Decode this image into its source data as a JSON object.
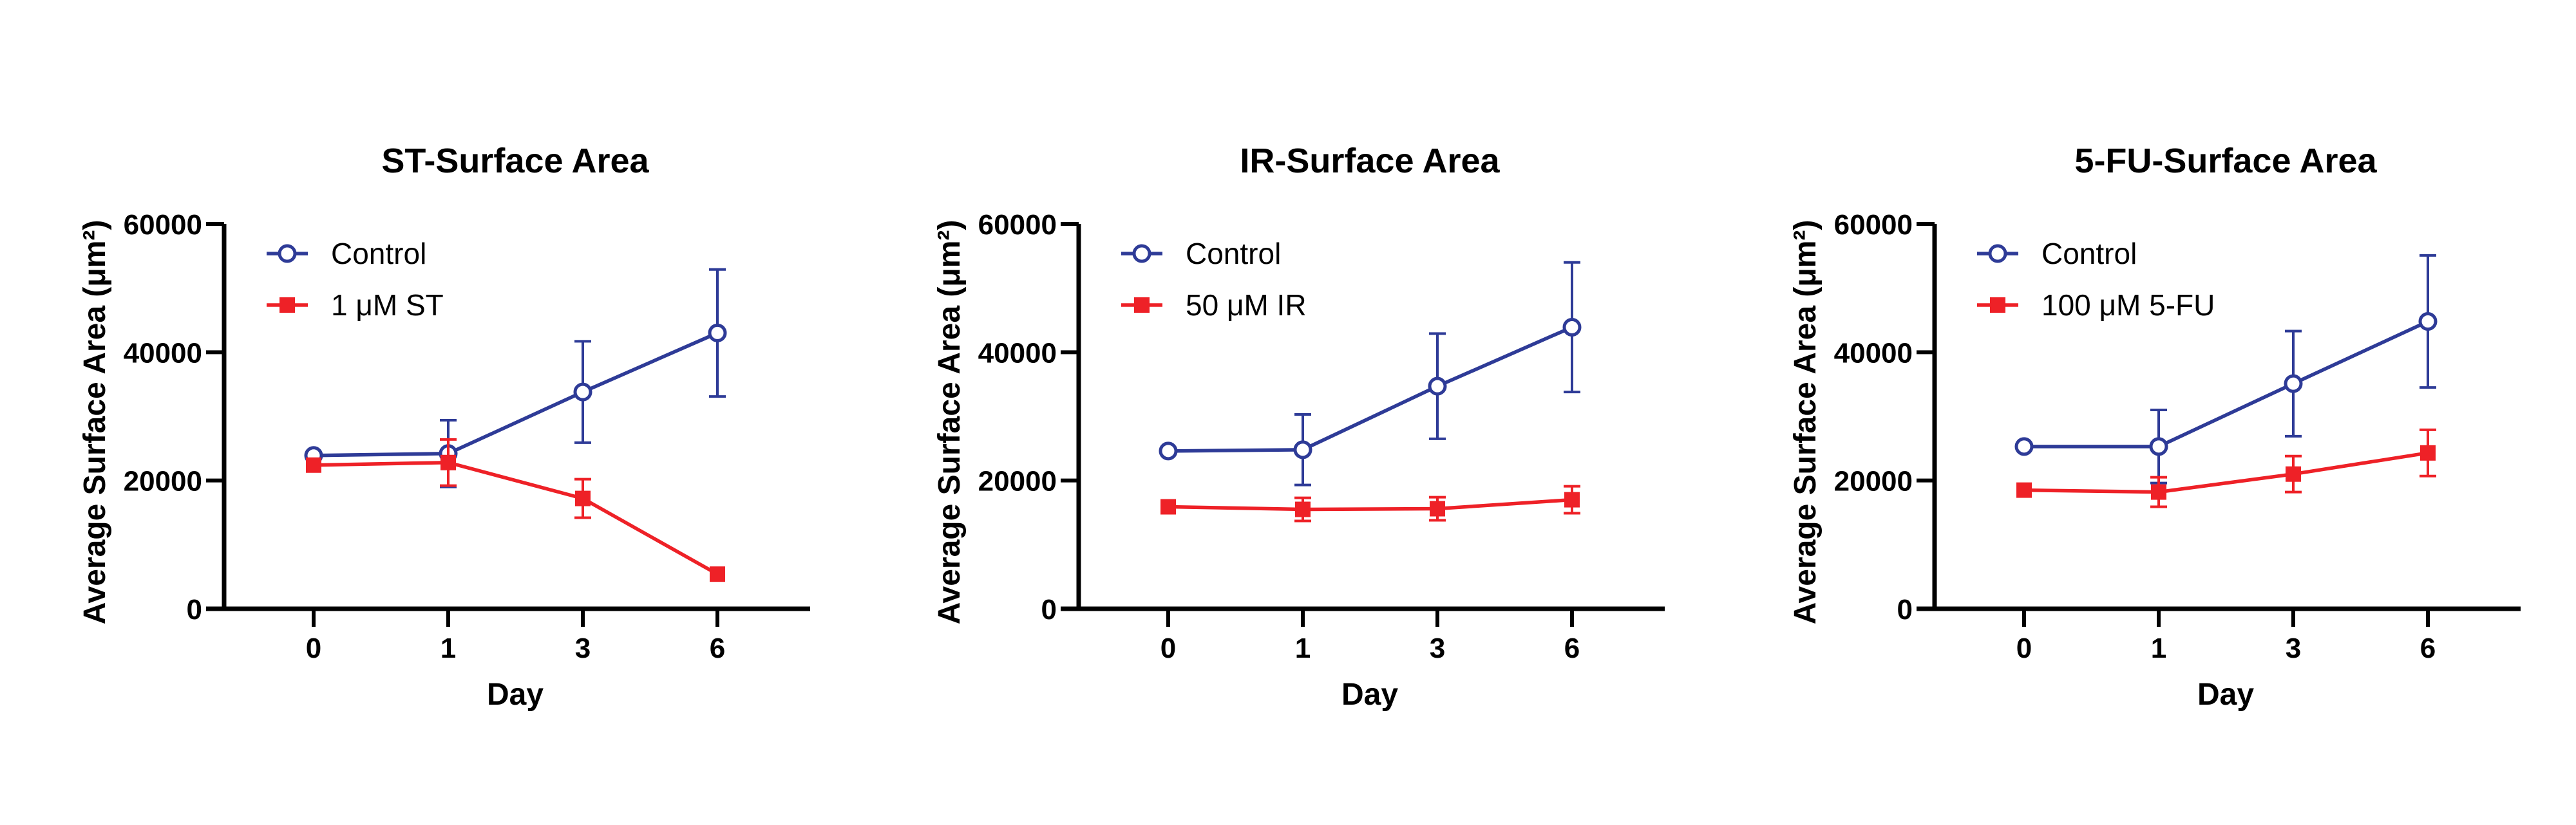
{
  "colors": {
    "control": "#2E3B97",
    "treatment": "#EE2127",
    "axis": "#000000"
  },
  "chart_data": [
    {
      "type": "line",
      "title": "ST-Surface Area",
      "xlabel": "Day",
      "ylabel": "Average Surface Area (μm²)",
      "categories": [
        "0",
        "1",
        "3",
        "6"
      ],
      "ylim": [
        0,
        60000
      ],
      "yticks": [
        "0",
        "20000",
        "40000",
        "60000"
      ],
      "legend_position": "top-left",
      "series": [
        {
          "name": "Control",
          "marker": "open-circle",
          "color": "#2E3B97",
          "values": [
            23900,
            24200,
            33800,
            43000
          ],
          "yerr": [
            0,
            5200,
            7900,
            9900
          ]
        },
        {
          "name": "1 μM ST",
          "marker": "filled-square",
          "color": "#EE2127",
          "values": [
            22400,
            22800,
            17200,
            5400
          ],
          "yerr": [
            0,
            3600,
            3000,
            0
          ]
        }
      ]
    },
    {
      "type": "line",
      "title": "IR-Surface Area",
      "xlabel": "Day",
      "ylabel": "Average Surface Area (μm²)",
      "categories": [
        "0",
        "1",
        "3",
        "6"
      ],
      "ylim": [
        0,
        60000
      ],
      "yticks": [
        "0",
        "20000",
        "40000",
        "60000"
      ],
      "legend_position": "top-left",
      "series": [
        {
          "name": "Control",
          "marker": "open-circle",
          "color": "#2E3B97",
          "values": [
            24600,
            24800,
            34700,
            43900
          ],
          "yerr": [
            0,
            5500,
            8200,
            10100
          ]
        },
        {
          "name": "50 μM IR",
          "marker": "filled-square",
          "color": "#EE2127",
          "values": [
            15900,
            15500,
            15600,
            17000
          ],
          "yerr": [
            0,
            1800,
            1800,
            2100
          ]
        }
      ]
    },
    {
      "type": "line",
      "title": "5-FU-Surface Area",
      "xlabel": "Day",
      "ylabel": "Average Surface Area (μm²)",
      "categories": [
        "0",
        "1",
        "3",
        "6"
      ],
      "ylim": [
        0,
        60000
      ],
      "yticks": [
        "0",
        "20000",
        "40000",
        "60000"
      ],
      "legend_position": "top-left",
      "series": [
        {
          "name": "Control",
          "marker": "open-circle",
          "color": "#2E3B97",
          "values": [
            25300,
            25300,
            35100,
            44800
          ],
          "yerr": [
            0,
            5700,
            8200,
            10300
          ]
        },
        {
          "name": "100 μM 5-FU",
          "marker": "filled-square",
          "color": "#EE2127",
          "values": [
            18500,
            18200,
            21000,
            24300
          ],
          "yerr": [
            0,
            2300,
            2800,
            3600
          ]
        }
      ]
    }
  ]
}
